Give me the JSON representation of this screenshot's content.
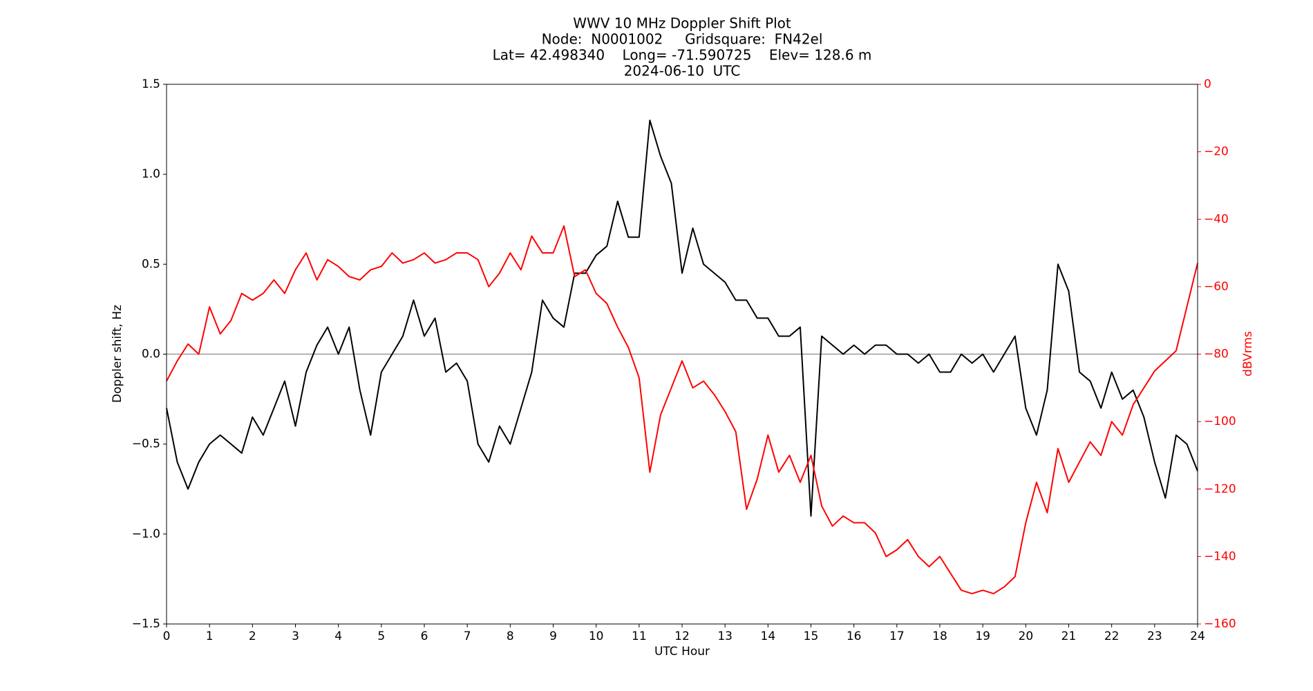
{
  "chart_data": {
    "type": "line",
    "title": "WWV 10 MHz Doppler Shift Plot",
    "subtitle": [
      "Node:  N0001002     Gridsquare:  FN42el",
      "Lat= 42.498340    Long= -71.590725    Elev= 128.6 m",
      "2024-06-10  UTC"
    ],
    "x_label": "UTC Hour",
    "y_label": "Doppler shift, Hz",
    "y2_label": "dBVrms",
    "x": [
      0,
      0.25,
      0.5,
      0.75,
      1,
      1.25,
      1.5,
      1.75,
      2,
      2.25,
      2.5,
      2.75,
      3,
      3.25,
      3.5,
      3.75,
      4,
      4.25,
      4.5,
      4.75,
      5,
      5.25,
      5.5,
      5.75,
      6,
      6.25,
      6.5,
      6.75,
      7,
      7.25,
      7.5,
      7.75,
      8,
      8.25,
      8.5,
      8.75,
      9,
      9.25,
      9.5,
      9.75,
      10,
      10.25,
      10.5,
      10.75,
      11,
      11.25,
      11.5,
      11.75,
      12,
      12.25,
      12.5,
      12.75,
      13,
      13.25,
      13.5,
      13.75,
      14,
      14.25,
      14.5,
      14.75,
      15,
      15.25,
      15.5,
      15.75,
      16,
      16.25,
      16.5,
      16.75,
      17,
      17.25,
      17.5,
      17.75,
      18,
      18.25,
      18.5,
      18.75,
      19,
      19.25,
      19.5,
      19.75,
      20,
      20.25,
      20.5,
      20.75,
      21,
      21.25,
      21.5,
      21.75,
      22,
      22.25,
      22.5,
      22.75,
      23,
      23.25,
      23.5,
      23.75,
      24
    ],
    "series": [
      {
        "name": "Doppler shift",
        "color": "#000000",
        "axis": "y",
        "values": [
          -0.3,
          -0.6,
          -0.75,
          -0.6,
          -0.5,
          -0.45,
          -0.5,
          -0.55,
          -0.35,
          -0.45,
          -0.3,
          -0.15,
          -0.4,
          -0.1,
          0.05,
          0.15,
          0.0,
          0.15,
          -0.2,
          -0.45,
          -0.1,
          0.0,
          0.1,
          0.3,
          0.1,
          0.2,
          -0.1,
          -0.05,
          -0.15,
          -0.5,
          -0.6,
          -0.4,
          -0.5,
          -0.3,
          -0.1,
          0.3,
          0.2,
          0.15,
          0.45,
          0.45,
          0.55,
          0.6,
          0.85,
          0.65,
          0.65,
          1.3,
          1.1,
          0.95,
          0.45,
          0.7,
          0.5,
          0.45,
          0.4,
          0.3,
          0.3,
          0.2,
          0.2,
          0.1,
          0.1,
          0.15,
          -0.9,
          0.1,
          0.05,
          0.0,
          0.05,
          0.0,
          0.05,
          0.05,
          0.0,
          0.0,
          -0.05,
          0.0,
          -0.1,
          -0.1,
          0.0,
          -0.05,
          0.0,
          -0.1,
          0.0,
          0.1,
          -0.3,
          -0.45,
          -0.2,
          0.5,
          0.35,
          -0.1,
          -0.15,
          -0.3,
          -0.1,
          -0.25,
          -0.2,
          -0.35,
          -0.6,
          -0.8,
          -0.45,
          -0.5,
          -0.65
        ]
      },
      {
        "name": "dBVrms",
        "color": "#ff0000",
        "axis": "y2",
        "values": [
          -88,
          -82,
          -77,
          -80,
          -66,
          -74,
          -70,
          -62,
          -64,
          -62,
          -58,
          -62,
          -55,
          -50,
          -58,
          -52,
          -54,
          -57,
          -58,
          -55,
          -54,
          -50,
          -53,
          -52,
          -50,
          -53,
          -52,
          -50,
          -50,
          -52,
          -60,
          -56,
          -50,
          -55,
          -45,
          -50,
          -50,
          -42,
          -57,
          -55,
          -62,
          -65,
          -72,
          -78,
          -87,
          -115,
          -98,
          -90,
          -82,
          -90,
          -88,
          -92,
          -97,
          -103,
          -126,
          -117,
          -104,
          -115,
          -110,
          -118,
          -110,
          -125,
          -131,
          -128,
          -130,
          -130,
          -133,
          -140,
          -138,
          -135,
          -140,
          -143,
          -140,
          -145,
          -150,
          -151,
          -150,
          -151,
          -149,
          -146,
          -130,
          -118,
          -127,
          -108,
          -118,
          -112,
          -106,
          -110,
          -100,
          -104,
          -95,
          -90,
          -85,
          -82,
          -79,
          -66,
          -53
        ]
      }
    ],
    "xlim": [
      0,
      24
    ],
    "xticks": [
      0,
      1,
      2,
      3,
      4,
      5,
      6,
      7,
      8,
      9,
      10,
      11,
      12,
      13,
      14,
      15,
      16,
      17,
      18,
      19,
      20,
      21,
      22,
      23,
      24
    ],
    "ylim": [
      -1.5,
      1.5
    ],
    "yticks": [
      {
        "value": -1.5,
        "label": "−1.5"
      },
      {
        "value": -1.0,
        "label": "−1.0"
      },
      {
        "value": -0.5,
        "label": "−0.5"
      },
      {
        "value": 0,
        "label": "0.0"
      },
      {
        "value": 0.5,
        "label": "0.5"
      },
      {
        "value": 1.0,
        "label": "1.0"
      },
      {
        "value": 1.5,
        "label": "1.5"
      }
    ],
    "y2lim": [
      -160,
      0
    ],
    "y2ticks": [
      {
        "value": -160,
        "label": "−160"
      },
      {
        "value": -140,
        "label": "−140"
      },
      {
        "value": -120,
        "label": "−120"
      },
      {
        "value": -100,
        "label": "−100"
      },
      {
        "value": -80,
        "label": "−80"
      },
      {
        "value": -60,
        "label": "−60"
      },
      {
        "value": -40,
        "label": "−40"
      },
      {
        "value": -20,
        "label": "−20"
      },
      0
    ],
    "y2_color": "#ff0000",
    "hlines": [
      0
    ]
  }
}
